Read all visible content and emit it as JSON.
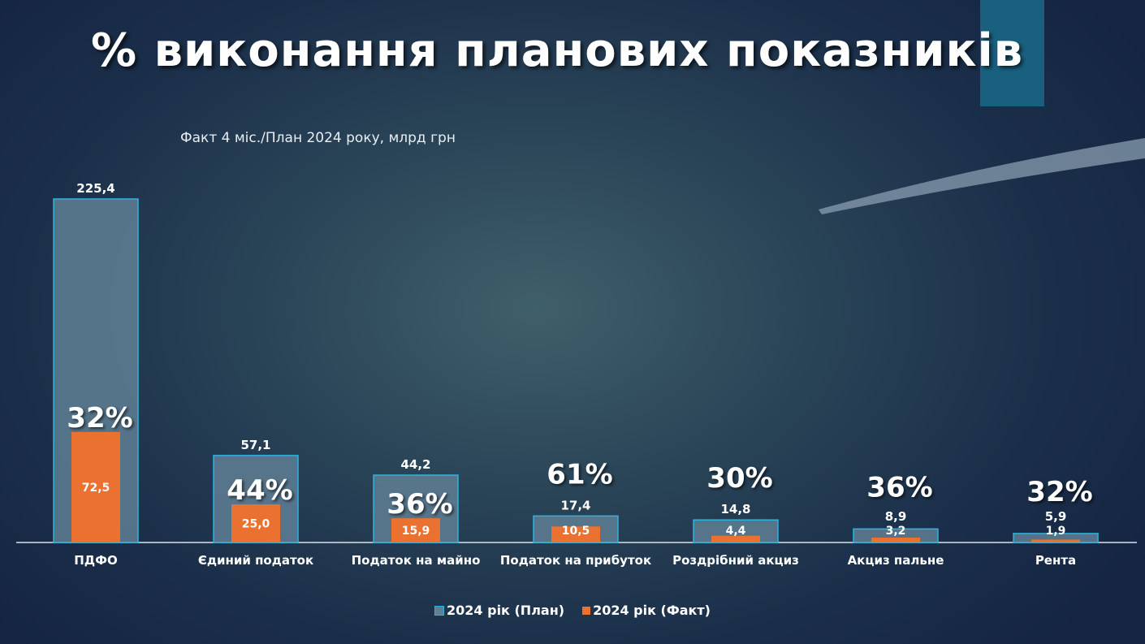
{
  "title": "% виконання планових показників",
  "subtitle": "Факт 4 міс./План 2024 року, млрд грн",
  "colors": {
    "plan": "#5f7f94",
    "plan_border": "#2bb5e0",
    "fact": "#ea7130"
  },
  "chart_data": {
    "type": "bar",
    "title": "% виконання планових показників",
    "subtitle": "Факт 4 міс./План 2024 року, млрд грн",
    "categories": [
      "ПДФО",
      "Єдиний податок",
      "Податок на майно",
      "Податок на прибуток",
      "Роздрібний акциз",
      "Акциз пальне",
      "Рента"
    ],
    "series": [
      {
        "name": "2024 рік (План)",
        "values": [
          225.4,
          57.1,
          44.2,
          17.4,
          14.8,
          8.9,
          5.9
        ],
        "labels": [
          "225,4",
          "57,1",
          "44,2",
          "17,4",
          "14,8",
          "8,9",
          "5,9"
        ]
      },
      {
        "name": "2024 рік (Факт)",
        "values": [
          72.5,
          25.0,
          15.9,
          10.5,
          4.4,
          3.2,
          1.9
        ],
        "labels": [
          "72,5",
          "25,0",
          "15,9",
          "10,5",
          "4,4",
          "3,2",
          "1,9"
        ]
      }
    ],
    "percent_labels": [
      "32%",
      "44%",
      "36%",
      "61%",
      "30%",
      "36%",
      "32%"
    ],
    "ylim": [
      0,
      225.4
    ],
    "legend": "bottom",
    "grid": false
  }
}
